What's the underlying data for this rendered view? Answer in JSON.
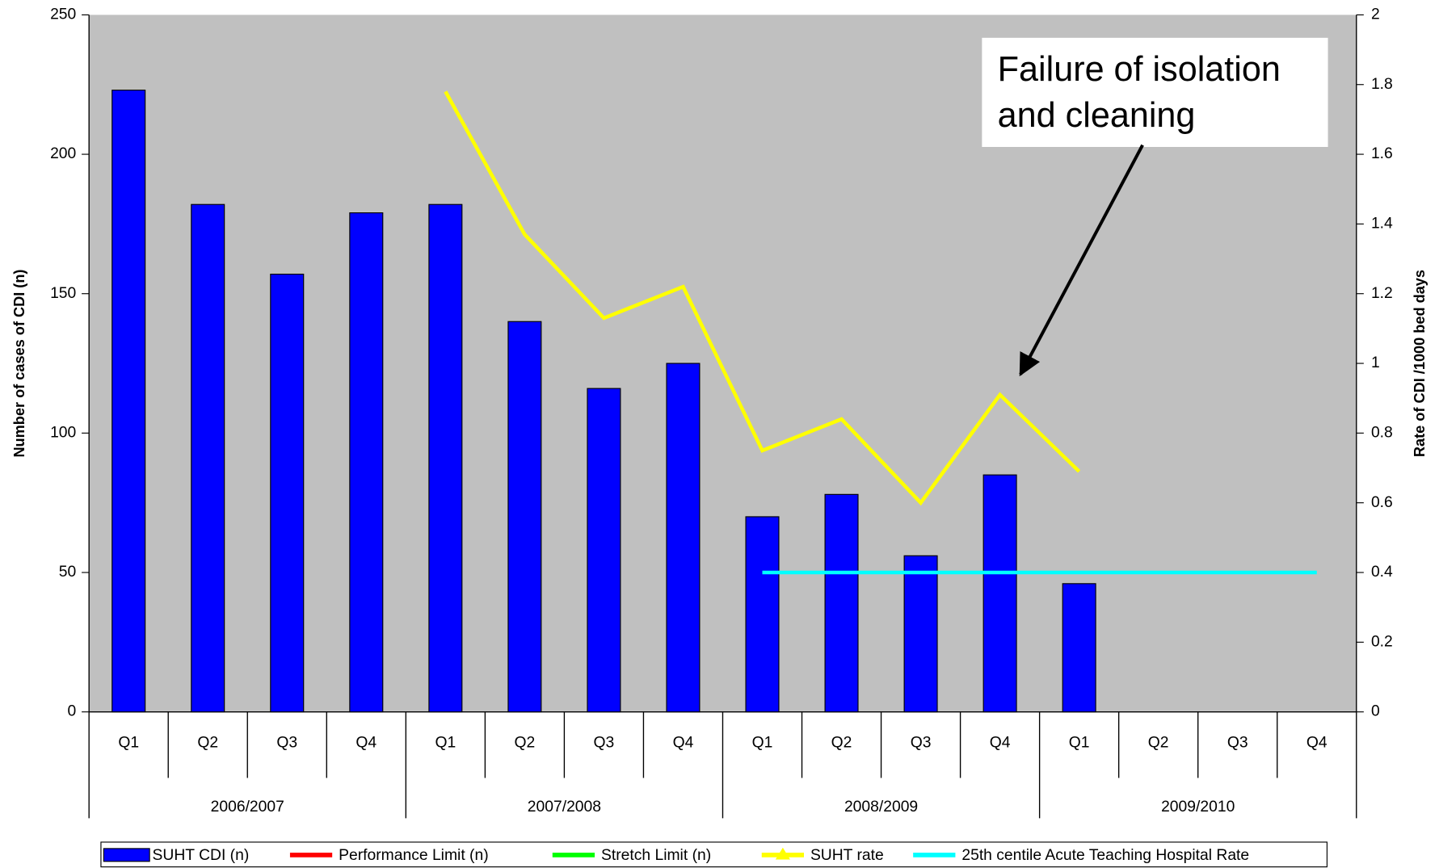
{
  "chart_data": {
    "type": "bar",
    "categories": [
      "Q1",
      "Q2",
      "Q3",
      "Q4",
      "Q1",
      "Q2",
      "Q3",
      "Q4",
      "Q1",
      "Q2",
      "Q3",
      "Q4",
      "Q1",
      "Q2",
      "Q3",
      "Q4"
    ],
    "groups": [
      "2006/2007",
      "2007/2008",
      "2008/2009",
      "2009/2010"
    ],
    "series": [
      {
        "name": "SUHT CDI (n)",
        "type": "bar",
        "color": "#0000ff",
        "values": [
          223,
          182,
          157,
          179,
          182,
          140,
          116,
          125,
          70,
          78,
          56,
          85,
          46,
          null,
          null,
          null
        ]
      },
      {
        "name": "Performance Limit (n)",
        "type": "line",
        "color": "#ff0000",
        "values": [
          null,
          null,
          null,
          null,
          null,
          null,
          null,
          null,
          null,
          null,
          null,
          null,
          null,
          null,
          null,
          null
        ]
      },
      {
        "name": "Stretch Limit (n)",
        "type": "line",
        "color": "#00ff00",
        "values": [
          null,
          null,
          null,
          null,
          null,
          null,
          null,
          null,
          null,
          null,
          null,
          null,
          null,
          null,
          null,
          null
        ]
      },
      {
        "name": "SUHT rate",
        "type": "line",
        "marker": "triangle",
        "color": "#ffff00",
        "axis": "y2",
        "values": [
          null,
          null,
          null,
          null,
          1.78,
          1.37,
          1.13,
          1.22,
          0.75,
          0.84,
          0.6,
          0.91,
          0.69,
          null,
          null,
          null
        ]
      },
      {
        "name": "25th centile Acute Teaching Hospital Rate",
        "type": "line",
        "color": "#00ffff",
        "axis": "y2",
        "values": [
          null,
          null,
          null,
          null,
          null,
          null,
          null,
          null,
          0.4,
          0.4,
          0.4,
          0.4,
          0.4,
          0.4,
          0.4,
          0.4
        ]
      }
    ],
    "ylabel": "Number of cases of CDI (n)",
    "y2label": "Rate of CDI /1000 bed days",
    "ylim": [
      0,
      250
    ],
    "yticks": [
      0,
      50,
      100,
      150,
      200,
      250
    ],
    "y2lim": [
      0,
      2
    ],
    "y2ticks": [
      0,
      0.2,
      0.4,
      0.6,
      0.8,
      1,
      1.2,
      1.4,
      1.6,
      1.8,
      2
    ],
    "plot_background": "#c0c0c0",
    "legend": "bottom",
    "annotation": {
      "lines": [
        "Failure of isolation",
        "and cleaning"
      ]
    }
  }
}
